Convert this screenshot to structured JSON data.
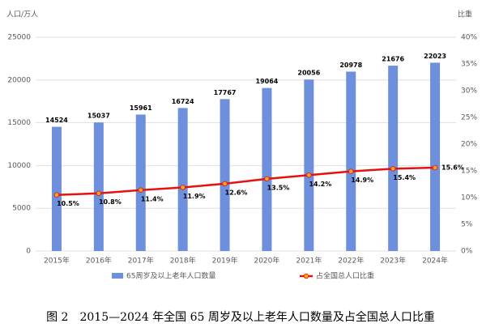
{
  "chart_data": {
    "type": "bar_line",
    "ylabel": "人口/万人",
    "y2label": "比重",
    "caption": "图 2　2015—2024 年全国 65 周岁及以上老年人口数量及占全国总人口比重",
    "categories": [
      "2015年",
      "2016年",
      "2017年",
      "2018年",
      "2019年",
      "2020年",
      "2021年",
      "2022年",
      "2023年",
      "2024年"
    ],
    "series": [
      {
        "name": "65周岁及以上老年人口数量",
        "type": "bar",
        "color": "#6e8fdc",
        "values": [
          14524,
          15037,
          15961,
          16724,
          17767,
          19064,
          20056,
          20978,
          21676,
          22023
        ]
      },
      {
        "name": "占全国总人口比重",
        "type": "line",
        "axis": "y2",
        "color": "#e8110f",
        "marker_color": "#f5a623",
        "values": [
          10.5,
          10.8,
          11.4,
          11.9,
          12.6,
          13.5,
          14.2,
          14.9,
          15.4,
          15.6
        ],
        "value_labels": [
          "10.5%",
          "10.8%",
          "11.4%",
          "11.9%",
          "12.6%",
          "13.5%",
          "14.2%",
          "14.9%",
          "15.4%",
          "15.6%"
        ]
      }
    ],
    "ylim": [
      0,
      25000
    ],
    "yticks": [
      0,
      5000,
      10000,
      15000,
      20000,
      25000
    ],
    "y2lim": [
      0,
      40
    ],
    "y2ticks": [
      {
        "value": 0,
        "label": "0%"
      },
      {
        "value": 5,
        "label": "5%"
      },
      {
        "value": 10,
        "label": "10%"
      },
      {
        "value": 15,
        "label": "15%"
      },
      {
        "value": 20,
        "label": "20%"
      },
      {
        "value": 25,
        "label": "25%"
      },
      {
        "value": 30,
        "label": "30%"
      },
      {
        "value": 35,
        "label": "35%"
      },
      {
        "value": 40,
        "label": "40%"
      }
    ],
    "grid": true
  }
}
